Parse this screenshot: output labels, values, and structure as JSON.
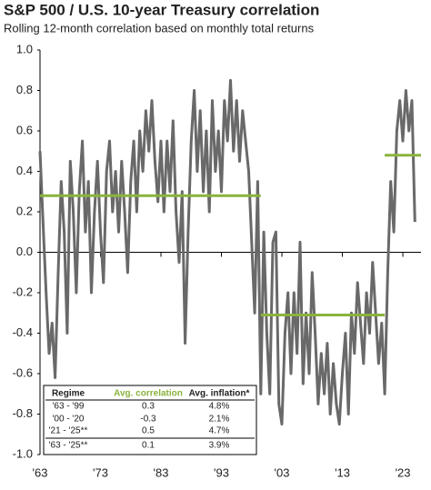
{
  "chart_data": {
    "type": "line",
    "title": "S&P 500 / U.S. 10-year Treasury correlation",
    "subtitle": "Rolling 12-month correlation based on monthly total returns",
    "x": [
      1963,
      1963.5,
      1964,
      1964.5,
      1965,
      1965.5,
      1966,
      1966.5,
      1967,
      1967.5,
      1968,
      1968.5,
      1969,
      1969.5,
      1970,
      1970.5,
      1971,
      1971.5,
      1972,
      1972.5,
      1973,
      1973.5,
      1974,
      1974.5,
      1975,
      1975.5,
      1976,
      1976.5,
      1977,
      1977.5,
      1978,
      1978.5,
      1979,
      1979.5,
      1980,
      1980.5,
      1981,
      1981.5,
      1982,
      1982.5,
      1983,
      1983.5,
      1984,
      1984.5,
      1985,
      1985.5,
      1986,
      1986.5,
      1987,
      1987.5,
      1988,
      1988.5,
      1989,
      1989.5,
      1990,
      1990.5,
      1991,
      1991.5,
      1992,
      1992.5,
      1993,
      1993.5,
      1994,
      1994.5,
      1995,
      1995.5,
      1996,
      1996.5,
      1997,
      1997.5,
      1998,
      1998.5,
      1999,
      1999.5,
      2000,
      2000.5,
      2001,
      2001.5,
      2002,
      2002.5,
      2003,
      2003.5,
      2004,
      2004.5,
      2005,
      2005.5,
      2006,
      2006.5,
      2007,
      2007.5,
      2008,
      2008.5,
      2009,
      2009.5,
      2010,
      2010.5,
      2011,
      2011.5,
      2012,
      2012.5,
      2013,
      2013.5,
      2014,
      2014.5,
      2015,
      2015.5,
      2016,
      2016.5,
      2017,
      2017.5,
      2018,
      2018.5,
      2019,
      2019.5,
      2020,
      2020.5,
      2021,
      2021.5,
      2022,
      2022.5,
      2023,
      2023.5,
      2024,
      2024.5,
      2025
    ],
    "series": [
      {
        "color": "#696969",
        "values": [
          0.5,
          0.15,
          -0.2,
          -0.5,
          -0.35,
          -0.62,
          -0.1,
          0.35,
          0.1,
          -0.4,
          0.45,
          0.2,
          -0.2,
          0.3,
          0.55,
          0.1,
          0.35,
          -0.2,
          0.2,
          0.45,
          0.1,
          -0.15,
          0.4,
          0.55,
          0.2,
          0.4,
          0.1,
          0.45,
          0.2,
          -0.1,
          0.35,
          0.55,
          0.2,
          0.6,
          0.4,
          0.7,
          0.5,
          0.75,
          0.45,
          0.25,
          0.55,
          0.2,
          0.55,
          0.3,
          0.65,
          0.2,
          -0.05,
          0.3,
          -0.45,
          0.1,
          0.55,
          0.8,
          0.4,
          0.7,
          0.3,
          0.6,
          0.2,
          0.75,
          0.4,
          0.6,
          0.3,
          0.75,
          0.55,
          0.85,
          0.5,
          0.75,
          0.45,
          0.7,
          0.55,
          0.4,
          0.05,
          -0.3,
          0.35,
          -0.7,
          0.1,
          -0.4,
          -0.7,
          0.05,
          0.1,
          -0.75,
          -0.85,
          -0.4,
          -0.2,
          -0.6,
          -0.2,
          -0.5,
          0.05,
          -0.65,
          -0.3,
          -0.6,
          -0.1,
          -0.4,
          -0.75,
          -0.5,
          -0.7,
          -0.45,
          -0.8,
          -0.55,
          -0.75,
          -0.85,
          -0.6,
          -0.4,
          -0.8,
          -0.3,
          -0.5,
          -0.15,
          -0.35,
          -0.55,
          -0.2,
          -0.4,
          -0.05,
          -0.3,
          -0.55,
          -0.35,
          -0.7,
          -0.1,
          0.35,
          0.1,
          0.6,
          0.75,
          0.55,
          0.8,
          0.6,
          0.75,
          0.15
        ]
      }
    ],
    "averages": {
      "color": "#8ab33e",
      "x": [
        [
          1963,
          1999.5
        ],
        [
          1999.5,
          2020
        ],
        [
          2020,
          2026
        ]
      ],
      "values": [
        0.28,
        -0.31,
        0.48
      ]
    },
    "xlim": [
      1963,
      2026
    ],
    "xticks": [
      {
        "value": 1963,
        "label": "'63"
      },
      {
        "value": 1973,
        "label": "'73"
      },
      {
        "value": 1983,
        "label": "'83"
      },
      {
        "value": 1993,
        "label": "'93"
      },
      {
        "value": 2003,
        "label": "'03"
      },
      {
        "value": 2013,
        "label": "'13"
      },
      {
        "value": 2023,
        "label": "'23"
      }
    ],
    "ylim": [
      -1,
      1
    ],
    "yticks": [
      {
        "value": 1,
        "label": "1.0"
      },
      0.8,
      0.6,
      0.4,
      0.2,
      {
        "value": 0,
        "label": "0.0"
      },
      -0.2,
      -0.4,
      -0.6,
      -0.8,
      {
        "value": -1,
        "label": "-1.0"
      }
    ],
    "table": {
      "columns": [
        "Regime",
        "Avg. correlation",
        "Avg. inflation*"
      ],
      "rows": [
        [
          "'63 - '99",
          "0.3",
          "4.8%"
        ],
        [
          "'00 - '20",
          "-0.3",
          "2.1%"
        ],
        [
          "'21 - '25**",
          "0.5",
          "4.7%"
        ],
        [
          "'63 - '25**",
          "0.1",
          "3.9%"
        ]
      ]
    }
  }
}
